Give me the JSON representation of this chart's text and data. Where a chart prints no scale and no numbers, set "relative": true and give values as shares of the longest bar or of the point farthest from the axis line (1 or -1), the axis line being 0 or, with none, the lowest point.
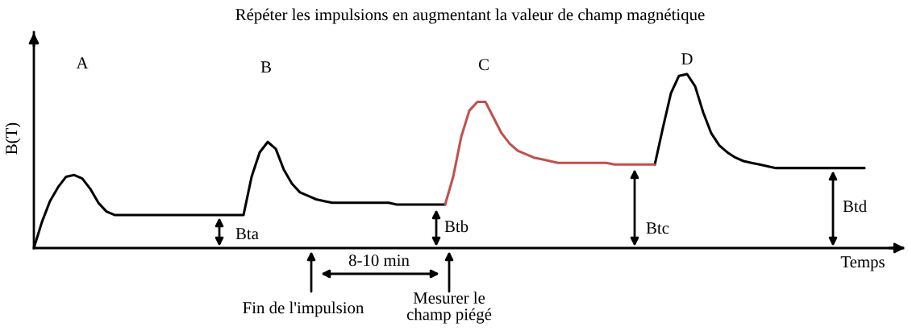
{
  "chart_data": {
    "type": "line",
    "relative": true,
    "title": "Répéter les impulsions en augmentant la valeur de champ magnétique",
    "ylabel": "B(T)",
    "xlabel": "Temps",
    "categories": [
      null,
      null,
      null,
      null,
      null,
      null,
      null,
      null,
      null,
      null,
      null,
      null,
      null,
      null,
      null,
      null,
      null,
      null,
      null,
      null,
      null,
      null,
      null,
      null,
      null,
      null,
      null,
      null,
      null,
      null,
      null,
      null,
      null,
      null,
      null,
      null,
      null,
      null,
      null,
      null,
      null,
      null,
      null,
      null,
      null,
      null,
      null,
      null,
      null,
      null,
      null,
      null,
      null,
      null,
      null,
      null,
      null,
      null,
      null,
      null,
      null,
      null,
      null,
      null,
      null,
      null,
      null,
      null,
      null,
      null,
      null,
      null,
      null,
      null,
      null,
      null,
      null,
      null,
      null,
      null,
      null,
      null,
      null,
      null,
      null,
      null,
      null,
      null,
      null,
      null,
      null,
      null,
      null,
      null,
      null,
      null,
      null,
      null,
      null,
      null,
      null,
      null,
      null,
      null
    ],
    "series": [
      {
        "color": "#000000",
        "values": [
          0,
          0.15,
          0.27,
          0.35,
          0.41,
          0.42,
          0.4,
          0.34,
          0.26,
          0.21,
          0.19,
          0.19,
          0.19,
          0.19,
          0.19,
          0.19,
          0.19,
          0.19,
          0.19,
          0.19,
          0.19,
          0.19,
          0.19,
          0.19,
          0.19,
          0.19,
          0.19,
          0.41,
          0.55,
          0.61,
          0.57,
          0.45,
          0.37,
          0.32,
          0.3,
          0.28,
          0.27,
          0.26,
          0.26,
          0.26,
          0.26,
          0.26,
          0.26,
          0.26,
          0.26,
          0.25,
          0.25,
          0.25,
          0.25,
          0.25,
          0.25,
          0.25,
          null,
          null,
          null,
          null,
          null,
          null,
          null,
          null,
          null,
          null,
          null,
          null,
          null,
          null,
          null,
          null,
          null,
          null,
          null,
          null,
          null,
          null,
          null,
          null,
          null,
          0.48,
          0.69,
          0.89,
          0.99,
          1.0,
          0.93,
          0.78,
          0.66,
          0.59,
          0.55,
          0.52,
          0.5,
          0.49,
          0.48,
          0.47,
          0.46,
          0.46,
          0.46,
          0.46,
          0.46,
          0.46,
          0.46,
          0.46,
          0.46,
          0.46,
          0.46,
          0.46
        ]
      },
      {
        "color": "#c0504d",
        "values": [
          null,
          null,
          null,
          null,
          null,
          null,
          null,
          null,
          null,
          null,
          null,
          null,
          null,
          null,
          null,
          null,
          null,
          null,
          null,
          null,
          null,
          null,
          null,
          null,
          null,
          null,
          null,
          null,
          null,
          null,
          null,
          null,
          null,
          null,
          null,
          null,
          null,
          null,
          null,
          null,
          null,
          null,
          null,
          null,
          null,
          null,
          null,
          null,
          null,
          null,
          null,
          0.25,
          0.41,
          0.64,
          0.79,
          0.84,
          0.84,
          0.75,
          0.66,
          0.6,
          0.56,
          0.54,
          0.52,
          0.51,
          0.5,
          0.49,
          0.49,
          0.49,
          0.49,
          0.49,
          0.49,
          0.49,
          0.48,
          0.48,
          0.48,
          0.48,
          0.48,
          0.48,
          null,
          null,
          null,
          null,
          null,
          null,
          null,
          null,
          null,
          null,
          null,
          null,
          null,
          null,
          null,
          null,
          null,
          null,
          null,
          null,
          null,
          null,
          null,
          null,
          null,
          null
        ]
      }
    ],
    "annotations": [
      "A",
      "B",
      "C",
      "D",
      "Bta",
      "Btb",
      "Btc",
      "Btd",
      "8-10 min",
      "Fin de l'impulsion",
      "Mesurer le\nchamp piégé"
    ],
    "legend": false
  }
}
